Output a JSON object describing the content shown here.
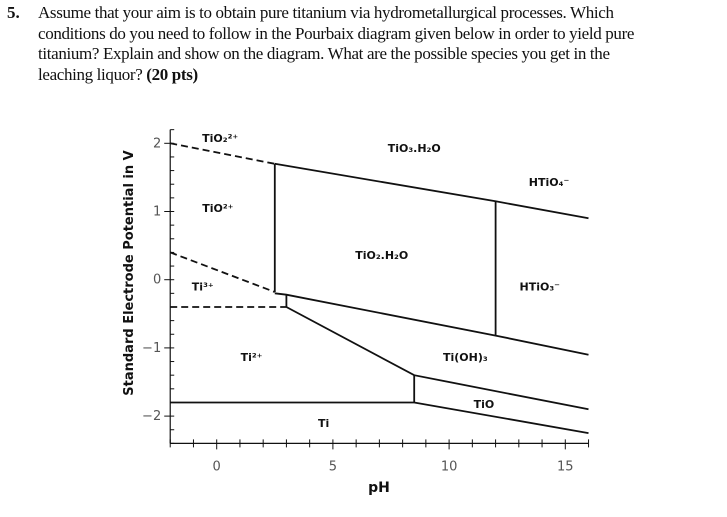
{
  "question": {
    "number": "5.",
    "lines": [
      "Assume that your aim is to obtain pure titanium via hydrometallurgical processes. Which",
      "conditions do you need to follow in the Pourbaix diagram given below in order to yield pure",
      "titanium? Explain and show on the diagram. What are the possible species you get in the",
      "leaching liquor?"
    ],
    "points": "(20 pts)"
  },
  "chart_data": {
    "type": "line",
    "xlabel": "pH",
    "ylabel": "Standard Electrode Potential in V",
    "xlim": [
      -2,
      16
    ],
    "ylim": [
      -2.4,
      2.2
    ],
    "xticks": [
      0,
      5,
      10,
      15
    ],
    "yticks": [
      2,
      1,
      0,
      -1,
      -2
    ],
    "grid": false,
    "boundaries": [
      {
        "style": "dashed",
        "points": [
          [
            -2,
            2.0
          ],
          [
            2.5,
            1.7
          ]
        ]
      },
      {
        "style": "solid",
        "points": [
          [
            2.5,
            1.7
          ],
          [
            12,
            1.15
          ],
          [
            16,
            0.9
          ]
        ]
      },
      {
        "style": "solid",
        "points": [
          [
            2.5,
            1.7
          ],
          [
            2.5,
            -0.18
          ]
        ]
      },
      {
        "style": "dashed",
        "points": [
          [
            -2,
            0.4
          ],
          [
            2.5,
            -0.18
          ]
        ]
      },
      {
        "style": "solid",
        "points": [
          [
            2.5,
            -0.2
          ],
          [
            3,
            -0.22
          ],
          [
            12,
            -0.82
          ],
          [
            16,
            -1.1
          ]
        ]
      },
      {
        "style": "solid",
        "points": [
          [
            12,
            1.15
          ],
          [
            12,
            -0.82
          ]
        ]
      },
      {
        "style": "solid",
        "points": [
          [
            3,
            -0.22
          ],
          [
            3,
            -0.4
          ]
        ]
      },
      {
        "style": "dashed",
        "points": [
          [
            -2,
            -0.4
          ],
          [
            3,
            -0.4
          ]
        ]
      },
      {
        "style": "solid",
        "points": [
          [
            3,
            -0.4
          ],
          [
            8.5,
            -1.4
          ],
          [
            16,
            -1.9
          ]
        ]
      },
      {
        "style": "solid",
        "points": [
          [
            8.5,
            -1.4
          ],
          [
            8.5,
            -1.8
          ]
        ]
      },
      {
        "style": "solid",
        "points": [
          [
            -2,
            -1.8
          ],
          [
            8.5,
            -1.8
          ],
          [
            16,
            -2.25
          ]
        ]
      }
    ],
    "regions": [
      {
        "label": "TiO₂²⁺",
        "ph": 0.15,
        "e": 2.08
      },
      {
        "label": "TiO₃.H₂O",
        "ph": 8.5,
        "e": 1.93
      },
      {
        "label": "HTiO₄⁻",
        "ph": 14.3,
        "e": 1.43
      },
      {
        "label": "TiO²⁺",
        "ph": 0.05,
        "e": 1.05
      },
      {
        "label": "TiO₂.H₂O",
        "ph": 7.1,
        "e": 0.36
      },
      {
        "label": "Ti³⁺",
        "ph": -0.6,
        "e": -0.1
      },
      {
        "label": "HTiO₃⁻",
        "ph": 13.9,
        "e": -0.1
      },
      {
        "label": "Ti²⁺",
        "ph": 1.5,
        "e": -1.13
      },
      {
        "label": "Ti(OH)₃",
        "ph": 10.7,
        "e": -1.13
      },
      {
        "label": "TiO",
        "ph": 11.5,
        "e": -1.82
      },
      {
        "label": "Ti",
        "ph": 4.6,
        "e": -2.1
      }
    ]
  }
}
